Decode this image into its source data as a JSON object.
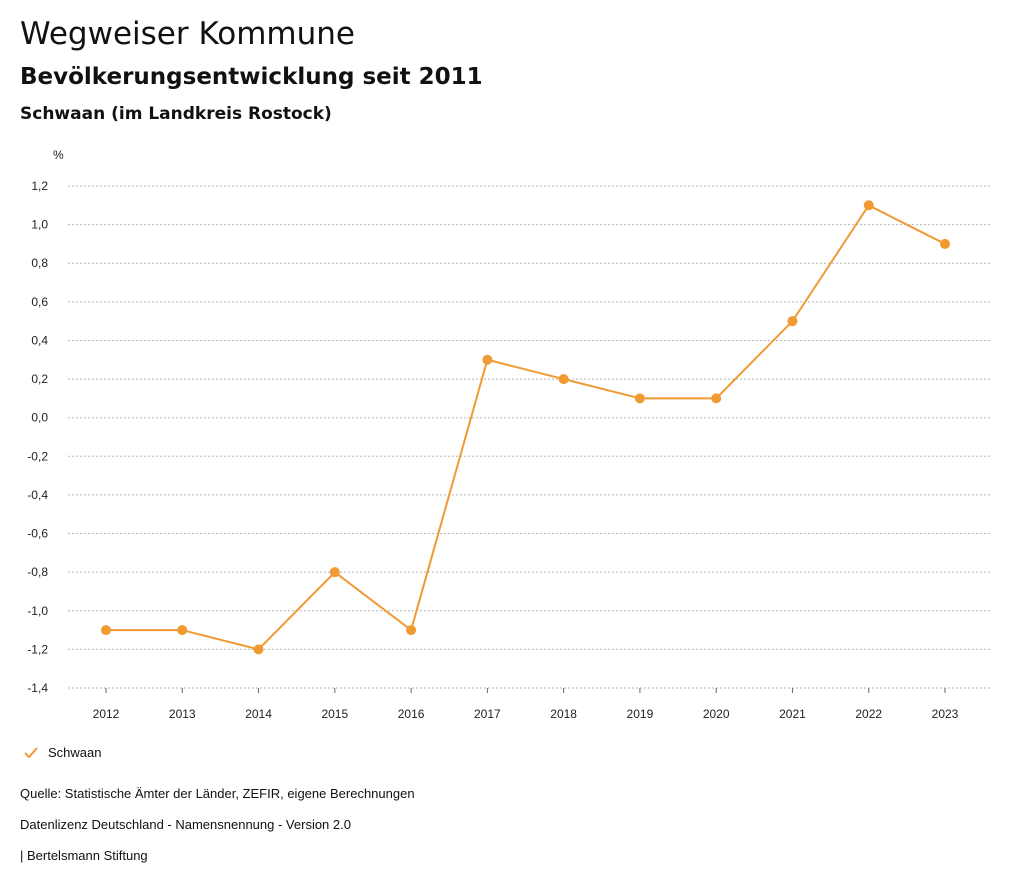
{
  "header": {
    "title": "Wegweiser Kommune",
    "subtitle": "Bevölkerungsentwicklung seit 2011",
    "region": "Schwaan (im Landkreis Rostock)"
  },
  "chart_data": {
    "type": "line",
    "title": "Bevölkerungsentwicklung seit 2011",
    "ylabel": "%",
    "xlabel": "",
    "x": [
      "2012",
      "2013",
      "2014",
      "2015",
      "2016",
      "2017",
      "2018",
      "2019",
      "2020",
      "2021",
      "2022",
      "2023"
    ],
    "series": [
      {
        "name": "Schwaan",
        "color": "#ef9a32",
        "values": [
          -1.1,
          -1.1,
          -1.2,
          -0.8,
          -1.1,
          0.3,
          0.2,
          0.1,
          0.1,
          0.5,
          1.1,
          0.9
        ]
      }
    ],
    "ylim": [
      -1.4,
      1.2
    ],
    "yticks": [
      1.2,
      1.0,
      0.8,
      0.6,
      0.4,
      0.2,
      0.0,
      -0.2,
      -0.4,
      -0.6,
      -0.8,
      -1.0,
      -1.2,
      -1.4
    ],
    "ytick_labels": [
      "1,2",
      "1,0",
      "0,8",
      "0,6",
      "0,4",
      "0,2",
      "0,0",
      "-0,2",
      "-0,4",
      "-0,6",
      "-0,8",
      "-1,0",
      "-1,2",
      "-1,4"
    ],
    "grid": true,
    "legend": "bottom-left"
  },
  "legend": {
    "label": "Schwaan",
    "icon": "check-icon"
  },
  "footer": {
    "source": "Quelle: Statistische Ämter der Länder, ZEFIR, eigene Berechnungen",
    "license": "Datenlizenz Deutschland - Namensnennung - Version 2.0",
    "publisher": "| Bertelsmann Stiftung"
  }
}
